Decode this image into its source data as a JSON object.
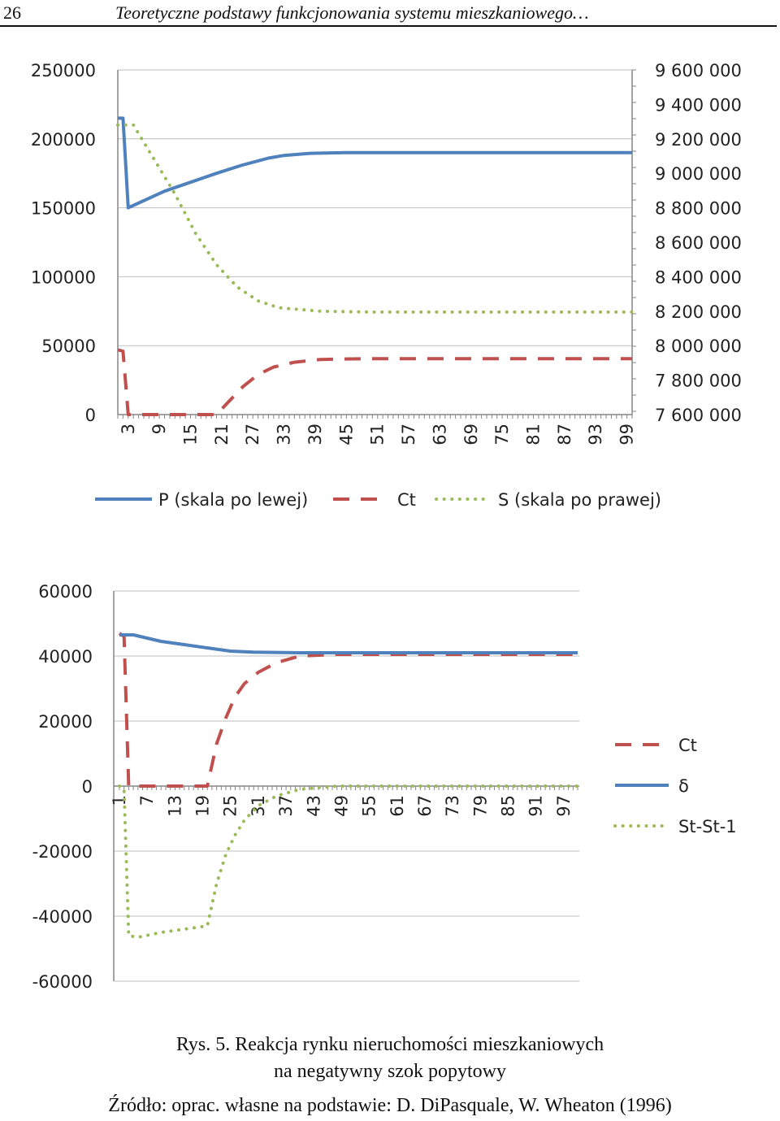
{
  "header": {
    "page_number": "26",
    "title": "Teoretyczne podstawy funkcjonowania systemu mieszkaniowego…"
  },
  "colors": {
    "P": "#4f81bd",
    "Ct": "#c0504d",
    "S": "#9bbb59",
    "axis": "#868686",
    "grid": "#bfbfbf"
  },
  "chart_data": [
    {
      "type": "line",
      "grid": true,
      "legend_position": "bottom",
      "x_tick_labels": [
        "3",
        "9",
        "15",
        "21",
        "27",
        "33",
        "39",
        "45",
        "51",
        "57",
        "63",
        "69",
        "75",
        "81",
        "87",
        "93",
        "99"
      ],
      "x_range": [
        1,
        100
      ],
      "y_left": {
        "ticks": [
          "0",
          "50000",
          "100000",
          "150000",
          "200000",
          "250000"
        ],
        "range": [
          0,
          250000
        ]
      },
      "y_right": {
        "ticks": [
          "7 600 000",
          "7 800 000",
          "8 000 000",
          "8 200 000",
          "8 400 000",
          "8 600 000",
          "8 800 000",
          "9 000 000",
          "9 200 000",
          "9 400 000",
          "9 600 000"
        ],
        "range": [
          7600000,
          9600000
        ]
      },
      "legend": [
        "P (skala po lewej)",
        "Ct",
        "S (skala po prawej)"
      ],
      "series": [
        {
          "name": "P (skala po lewej)",
          "axis": "left",
          "style": "solid",
          "points": [
            [
              1,
              215000
            ],
            [
              2,
              215000
            ],
            [
              3,
              150000
            ],
            [
              10,
              162000
            ],
            [
              20,
              175000
            ],
            [
              25,
              181000
            ],
            [
              28,
              184000
            ],
            [
              30,
              186000
            ],
            [
              33,
              188000
            ],
            [
              38,
              189500
            ],
            [
              45,
              190000
            ],
            [
              100,
              190000
            ]
          ]
        },
        {
          "name": "Ct",
          "axis": "left",
          "style": "dashed",
          "points": [
            [
              1,
              47000
            ],
            [
              2,
              46000
            ],
            [
              3,
              0
            ],
            [
              20,
              0
            ],
            [
              22,
              8000
            ],
            [
              25,
              20000
            ],
            [
              28,
              29000
            ],
            [
              31,
              34500
            ],
            [
              35,
              38000
            ],
            [
              40,
              40000
            ],
            [
              48,
              40500
            ],
            [
              100,
              40500
            ]
          ]
        },
        {
          "name": "S (skala po prawej)",
          "axis": "right",
          "style": "dotted",
          "points": [
            [
              1,
              9280000
            ],
            [
              4,
              9280000
            ],
            [
              8,
              9080000
            ],
            [
              12,
              8880000
            ],
            [
              16,
              8650000
            ],
            [
              20,
              8470000
            ],
            [
              24,
              8340000
            ],
            [
              28,
              8260000
            ],
            [
              32,
              8220000
            ],
            [
              40,
              8200000
            ],
            [
              50,
              8195000
            ],
            [
              100,
              8195000
            ]
          ]
        }
      ]
    },
    {
      "type": "line",
      "grid": true,
      "legend_position": "right",
      "x_tick_labels": [
        "1",
        "7",
        "13",
        "19",
        "25",
        "31",
        "37",
        "43",
        "49",
        "55",
        "61",
        "67",
        "73",
        "79",
        "85",
        "91",
        "97"
      ],
      "x_range": [
        1,
        100
      ],
      "y": {
        "ticks": [
          "-60000",
          "-40000",
          "-20000",
          "0",
          "20000",
          "40000",
          "60000"
        ],
        "range": [
          -60000,
          60000
        ]
      },
      "legend": [
        "Ct",
        "δ",
        "St-St-1"
      ],
      "series": [
        {
          "name": "Ct",
          "style": "dashed",
          "points": [
            [
              1,
              47000
            ],
            [
              2,
              46000
            ],
            [
              3,
              0
            ],
            [
              20,
              0
            ],
            [
              22,
              13000
            ],
            [
              24,
              21000
            ],
            [
              26,
              27500
            ],
            [
              28,
              31500
            ],
            [
              31,
              35000
            ],
            [
              35,
              38000
            ],
            [
              40,
              40000
            ],
            [
              48,
              40500
            ],
            [
              100,
              40500
            ]
          ]
        },
        {
          "name": "δ",
          "style": "solid",
          "points": [
            [
              1,
              46500
            ],
            [
              4,
              46500
            ],
            [
              10,
              44500
            ],
            [
              15,
              43500
            ],
            [
              20,
              42500
            ],
            [
              25,
              41500
            ],
            [
              30,
              41200
            ],
            [
              40,
              41000
            ],
            [
              100,
              41000
            ]
          ]
        },
        {
          "name": "St-St-1",
          "style": "dotted",
          "points": [
            [
              1,
              0
            ],
            [
              2,
              -1000
            ],
            [
              3,
              -46000
            ],
            [
              5,
              -46500
            ],
            [
              10,
              -45000
            ],
            [
              15,
              -44000
            ],
            [
              20,
              -43000
            ],
            [
              22,
              -30000
            ],
            [
              24,
              -21000
            ],
            [
              26,
              -15000
            ],
            [
              28,
              -10500
            ],
            [
              31,
              -6000
            ],
            [
              35,
              -3000
            ],
            [
              40,
              -1000
            ],
            [
              48,
              0
            ],
            [
              100,
              0
            ]
          ]
        }
      ]
    }
  ],
  "caption": {
    "line1": "Rys. 5. Reakcja rynku nieruchomości mieszkaniowych",
    "line2": "na negatywny szok popytowy",
    "source": "Źródło: oprac. własne na podstawie: D. DiPasquale, W. Wheaton (1996)"
  }
}
